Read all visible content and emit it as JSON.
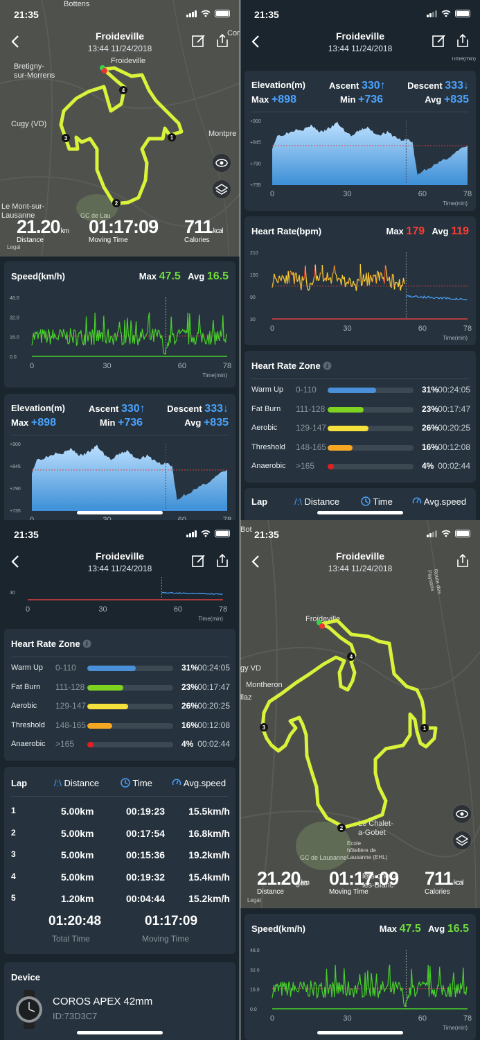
{
  "status": {
    "time": "21:35"
  },
  "header": {
    "title": "Froideville",
    "subtitle": "13:44 11/24/2018"
  },
  "map": {
    "labels_top": [
      "Bottens",
      "Froideville",
      "Bretigny-\nsur-Morrens",
      "Cugy (VD)",
      "Montpre",
      "Le Mont-sur-\nLausanne",
      "GC de Lau",
      "Cor"
    ],
    "labels_big": [
      "Froideville",
      "gy VD",
      "Montheron",
      "llaz",
      "Le Chalet-\na-Gobet",
      "GC de Lausanne",
      "Ecole\nhôtelière de\nLausanne (EHL)",
      "Route des Paysans",
      "Cugy (VD)",
      "Bot",
      "ges",
      "lers-chez-\nles-Blanc",
      "Legal"
    ],
    "legal": "Legal",
    "km_markers": [
      "1",
      "2",
      "3",
      "4"
    ]
  },
  "summary": {
    "distance": "21.20",
    "distance_unit": "km",
    "distance_label": "Distance",
    "moving_time": "01:17:09",
    "moving_time_label": "Moving Time",
    "calories": "711",
    "calories_unit": "kcal",
    "calories_label": "Calories"
  },
  "speed": {
    "title": "Speed(km/h)",
    "max_label": "Max",
    "max": "47.5",
    "avg_label": "Avg",
    "avg": "16.5",
    "y_ticks": [
      "48.0",
      "32.0",
      "16.0",
      "0.0"
    ],
    "x_ticks": [
      "0",
      "30",
      "60",
      "78"
    ],
    "x_unit": "Time(min)"
  },
  "elevation": {
    "title": "Elevation(m)",
    "ascent_label": "Ascent",
    "ascent": "330",
    "descent_label": "Descent",
    "descent": "333",
    "max_label": "Max",
    "max": "+898",
    "min_label": "Min",
    "min": "+736",
    "avg_label": "Avg",
    "avg": "+835",
    "y_ticks": [
      "+900",
      "+845",
      "+790",
      "+735"
    ],
    "x_ticks": [
      "0",
      "30",
      "60",
      "78"
    ],
    "x_unit": "Time(min)"
  },
  "heart_rate": {
    "title": "Heart Rate(bpm)",
    "max_label": "Max",
    "max": "179",
    "avg_label": "Avg",
    "avg": "119",
    "y_ticks": [
      "210",
      "150",
      "90",
      "30"
    ],
    "x_ticks": [
      "0",
      "30",
      "60",
      "78"
    ],
    "x_unit": "Time(min)"
  },
  "zones": {
    "title": "Heart Rate Zone",
    "rows": [
      {
        "name": "Warm Up",
        "range": "0-110",
        "pct": "31%",
        "time": "00:24:05",
        "frac": 0.31,
        "color": "#4a90d9"
      },
      {
        "name": "Fat Burn",
        "range": "111-128",
        "pct": "23%",
        "time": "00:17:47",
        "frac": 0.23,
        "color": "#7ed321"
      },
      {
        "name": "Aerobic",
        "range": "129-147",
        "pct": "26%",
        "time": "00:20:25",
        "frac": 0.26,
        "color": "#f5e03c"
      },
      {
        "name": "Threshold",
        "range": "148-165",
        "pct": "16%",
        "time": "00:12:08",
        "frac": 0.16,
        "color": "#f5a623"
      },
      {
        "name": "Anaerobic",
        "range": ">165",
        "pct": "4%",
        "time": "00:02:44",
        "frac": 0.04,
        "color": "#e02020"
      }
    ]
  },
  "laps": {
    "title": "Lap",
    "tab_distance": "Distance",
    "tab_time": "Time",
    "tab_speed": "Avg.speed",
    "rows": [
      {
        "n": "1",
        "dist": "5.00km",
        "time": "00:19:23",
        "speed": "15.5km/h"
      },
      {
        "n": "2",
        "dist": "5.00km",
        "time": "00:17:54",
        "speed": "16.8km/h"
      },
      {
        "n": "3",
        "dist": "5.00km",
        "time": "00:15:36",
        "speed": "19.2km/h"
      },
      {
        "n": "4",
        "dist": "5.00km",
        "time": "00:19:32",
        "speed": "15.4km/h"
      },
      {
        "n": "5",
        "dist": "1.20km",
        "time": "00:04:44",
        "speed": "15.2km/h"
      }
    ],
    "total_time": "01:20:48",
    "total_time_label": "Total Time",
    "moving_time": "01:17:09",
    "moving_time_label": "Moving Time"
  },
  "device": {
    "title": "Device",
    "name": "COROS APEX 42mm",
    "id": "ID:73D3C7"
  },
  "chart_data": [
    {
      "type": "line",
      "title": "Speed(km/h)",
      "x_unit": "Time(min)",
      "xlim": [
        0,
        78
      ],
      "ylim": [
        0,
        48
      ],
      "avg": 16.5,
      "max": 47.5,
      "color": "#49d12a"
    },
    {
      "type": "area",
      "title": "Elevation(m)",
      "x_unit": "Time(min)",
      "xlim": [
        0,
        78
      ],
      "ylim": [
        735,
        900
      ],
      "avg": 835,
      "x": [
        0,
        2,
        5,
        8,
        10,
        12,
        14,
        16,
        18,
        20,
        22,
        24,
        26,
        28,
        30,
        32,
        34,
        36,
        38,
        40,
        42,
        44,
        46,
        48,
        50,
        52,
        54,
        56,
        57,
        58,
        60,
        63,
        66,
        69,
        72,
        75,
        78
      ],
      "y": [
        830,
        860,
        866,
        872,
        880,
        876,
        882,
        888,
        875,
        870,
        878,
        885,
        895,
        880,
        868,
        860,
        870,
        878,
        882,
        872,
        864,
        866,
        870,
        862,
        855,
        848,
        852,
        845,
        800,
        760,
        770,
        780,
        788,
        800,
        812,
        825,
        835
      ]
    },
    {
      "type": "line",
      "title": "Heart Rate(bpm)",
      "x_unit": "Time(min)",
      "xlim": [
        0,
        78
      ],
      "ylim": [
        30,
        210
      ],
      "avg": 119,
      "max": 179
    }
  ]
}
